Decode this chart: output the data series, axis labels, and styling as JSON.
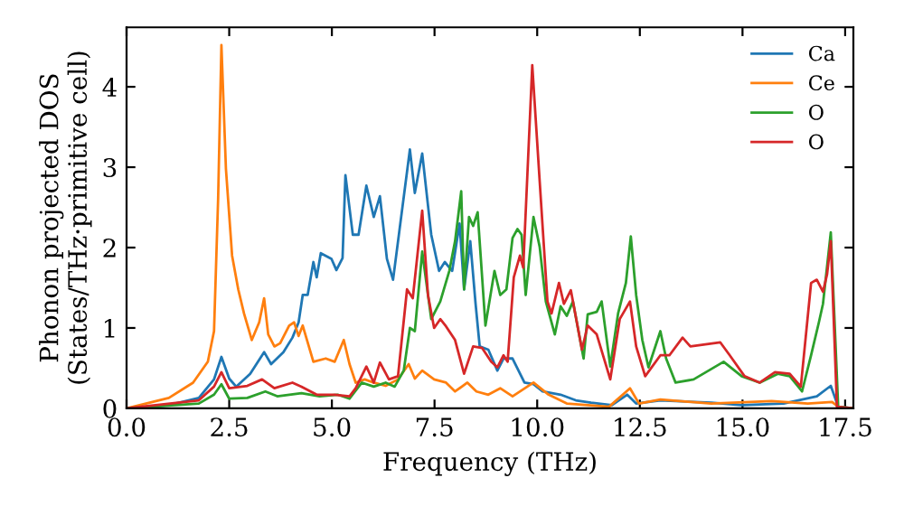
{
  "chart_data": {
    "type": "line",
    "xlabel": "Frequency (THz)",
    "ylabel": "Phonon projected DOS\n(States/THz·primitive cell)",
    "xlim": [
      0,
      17.7
    ],
    "ylim": [
      0,
      4.74
    ],
    "xticks": [
      {
        "value": 0,
        "label": "0.0"
      },
      {
        "value": 2.5,
        "label": "2.5"
      },
      {
        "value": 5,
        "label": "5.0"
      },
      {
        "value": 7.5,
        "label": "7.5"
      },
      {
        "value": 10,
        "label": "10.0"
      },
      {
        "value": 12.5,
        "label": "12.5"
      },
      {
        "value": 15,
        "label": "15.0"
      },
      {
        "value": 17.5,
        "label": "17.5"
      }
    ],
    "yticks": [
      0,
      1,
      2,
      3,
      4
    ],
    "grid": false,
    "legend": "top right",
    "marker": "none",
    "line_style": "solid",
    "series": [
      {
        "name": "Ca",
        "color": "#1f77b4",
        "x": [
          0,
          1.03,
          1.76,
          2.13,
          2.31,
          2.5,
          2.67,
          3.01,
          3.35,
          3.52,
          3.82,
          4.04,
          4.19,
          4.29,
          4.41,
          4.55,
          4.63,
          4.73,
          4.99,
          5.11,
          5.26,
          5.33,
          5.51,
          5.65,
          5.84,
          6.02,
          6.17,
          6.34,
          6.49,
          6.9,
          7.02,
          7.2,
          7.42,
          7.61,
          7.75,
          7.93,
          8.11,
          8.22,
          8.37,
          8.5,
          8.6,
          8.81,
          9.03,
          9.18,
          9.4,
          9.69,
          9.91,
          10.13,
          10.57,
          10.94,
          11.31,
          11.82,
          12.19,
          12.41,
          13.0,
          14.24,
          14.98,
          16.0,
          16.81,
          17.15,
          17.33,
          17.69
        ],
        "values": [
          0,
          0.04,
          0.13,
          0.36,
          0.64,
          0.37,
          0.27,
          0.43,
          0.7,
          0.55,
          0.7,
          0.88,
          1.07,
          1.41,
          1.41,
          1.82,
          1.63,
          1.93,
          1.86,
          1.72,
          1.87,
          2.9,
          2.16,
          2.16,
          2.77,
          2.38,
          2.64,
          1.86,
          1.6,
          3.22,
          2.68,
          3.17,
          2.16,
          1.71,
          1.82,
          1.71,
          2.3,
          1.48,
          2.08,
          1.3,
          0.77,
          0.73,
          0.47,
          0.62,
          0.62,
          0.32,
          0.3,
          0.21,
          0.17,
          0.1,
          0.07,
          0.04,
          0.17,
          0.06,
          0.1,
          0.07,
          0.04,
          0.06,
          0.15,
          0.28,
          0.02,
          0
        ]
      },
      {
        "name": "Ce",
        "color": "#ff7f0e",
        "x": [
          0,
          1.03,
          1.62,
          1.98,
          2.13,
          2.23,
          2.31,
          2.42,
          2.57,
          2.72,
          2.86,
          3.05,
          3.23,
          3.35,
          3.45,
          3.6,
          3.74,
          3.96,
          4.08,
          4.19,
          4.29,
          4.55,
          4.85,
          5.07,
          5.29,
          5.43,
          5.58,
          5.8,
          6.02,
          6.31,
          6.61,
          6.87,
          7.02,
          7.2,
          7.49,
          7.78,
          8.0,
          8.3,
          8.52,
          8.81,
          9.1,
          9.4,
          9.91,
          10.28,
          10.72,
          11.75,
          12.26,
          12.48,
          13.0,
          14.24,
          15.71,
          16.59,
          17.18,
          17.36,
          17.69
        ],
        "values": [
          0,
          0.13,
          0.32,
          0.58,
          0.96,
          2.61,
          4.52,
          2.98,
          1.9,
          1.48,
          1.18,
          0.85,
          1.07,
          1.37,
          0.92,
          0.77,
          0.81,
          1.03,
          1.07,
          0.9,
          1.03,
          0.58,
          0.62,
          0.58,
          0.85,
          0.55,
          0.32,
          0.36,
          0.32,
          0.28,
          0.36,
          0.55,
          0.37,
          0.47,
          0.36,
          0.32,
          0.21,
          0.32,
          0.21,
          0.17,
          0.25,
          0.15,
          0.32,
          0.17,
          0.06,
          0.02,
          0.25,
          0.06,
          0.11,
          0.06,
          0.09,
          0.06,
          0.08,
          0.01,
          0
        ]
      },
      {
        "name": "O",
        "color": "#2ca02c",
        "x": [
          0,
          1.76,
          2.13,
          2.31,
          2.5,
          2.94,
          3.38,
          3.67,
          4.26,
          4.7,
          5.14,
          5.43,
          5.73,
          6.02,
          6.31,
          6.53,
          6.75,
          6.9,
          7.02,
          7.2,
          7.42,
          7.64,
          7.86,
          8.0,
          8.15,
          8.22,
          8.34,
          8.44,
          8.55,
          8.74,
          8.96,
          9.1,
          9.25,
          9.4,
          9.52,
          9.62,
          9.72,
          9.91,
          10.06,
          10.21,
          10.43,
          10.57,
          10.72,
          10.87,
          11.13,
          11.23,
          11.45,
          11.57,
          11.78,
          11.97,
          12.16,
          12.28,
          12.41,
          12.56,
          12.71,
          13.0,
          13.14,
          13.37,
          13.81,
          14.54,
          14.98,
          15.42,
          15.86,
          16.15,
          16.45,
          16.67,
          16.86,
          16.96,
          17.15,
          17.33,
          17.69
        ],
        "values": [
          0,
          0.06,
          0.17,
          0.3,
          0.12,
          0.13,
          0.21,
          0.15,
          0.19,
          0.15,
          0.17,
          0.12,
          0.32,
          0.27,
          0.32,
          0.27,
          0.47,
          1.0,
          0.96,
          1.95,
          1.11,
          1.33,
          1.71,
          2.08,
          2.7,
          1.48,
          2.38,
          2.27,
          2.44,
          1.03,
          1.71,
          1.41,
          1.48,
          2.12,
          2.23,
          2.16,
          1.41,
          2.38,
          2.01,
          1.33,
          0.92,
          1.27,
          1.15,
          1.33,
          0.62,
          1.17,
          1.2,
          1.33,
          0.52,
          1.18,
          1.56,
          2.14,
          1.41,
          0.85,
          0.51,
          0.96,
          0.62,
          0.32,
          0.36,
          0.58,
          0.4,
          0.32,
          0.43,
          0.4,
          0.21,
          0.66,
          1.07,
          1.3,
          2.19,
          0.02,
          0
        ]
      },
      {
        "name": "O",
        "color": "#d62728",
        "x": [
          0,
          1.76,
          2.13,
          2.31,
          2.5,
          2.94,
          3.3,
          3.6,
          4.04,
          4.26,
          4.63,
          5.07,
          5.43,
          5.58,
          5.84,
          6.02,
          6.17,
          6.39,
          6.61,
          6.83,
          6.97,
          7.2,
          7.34,
          7.49,
          7.64,
          7.78,
          8.0,
          8.22,
          8.44,
          8.66,
          8.88,
          9.03,
          9.18,
          9.28,
          9.43,
          9.58,
          9.66,
          9.88,
          10.06,
          10.25,
          10.35,
          10.53,
          10.65,
          10.82,
          11.09,
          11.23,
          11.45,
          11.78,
          12.01,
          12.26,
          12.41,
          12.63,
          13.0,
          13.22,
          13.54,
          13.73,
          14.46,
          14.69,
          15.05,
          15.42,
          15.79,
          16.15,
          16.42,
          16.67,
          16.81,
          16.96,
          17.06,
          17.15,
          17.3,
          17.69
        ],
        "values": [
          0,
          0.1,
          0.27,
          0.45,
          0.25,
          0.28,
          0.36,
          0.25,
          0.32,
          0.27,
          0.17,
          0.17,
          0.15,
          0.25,
          0.52,
          0.32,
          0.57,
          0.36,
          0.4,
          1.48,
          1.37,
          2.46,
          1.41,
          1.0,
          1.11,
          1.02,
          0.85,
          0.43,
          0.77,
          0.75,
          0.58,
          0.51,
          0.66,
          0.58,
          1.63,
          1.9,
          1.75,
          4.27,
          2.83,
          1.33,
          1.18,
          1.56,
          1.3,
          1.47,
          0.73,
          1.03,
          0.92,
          0.36,
          1.11,
          1.33,
          0.77,
          0.4,
          0.66,
          0.66,
          0.88,
          0.77,
          0.82,
          0.66,
          0.4,
          0.32,
          0.45,
          0.43,
          0.27,
          1.56,
          1.6,
          1.45,
          1.67,
          2.08,
          0.02,
          0
        ]
      }
    ]
  }
}
